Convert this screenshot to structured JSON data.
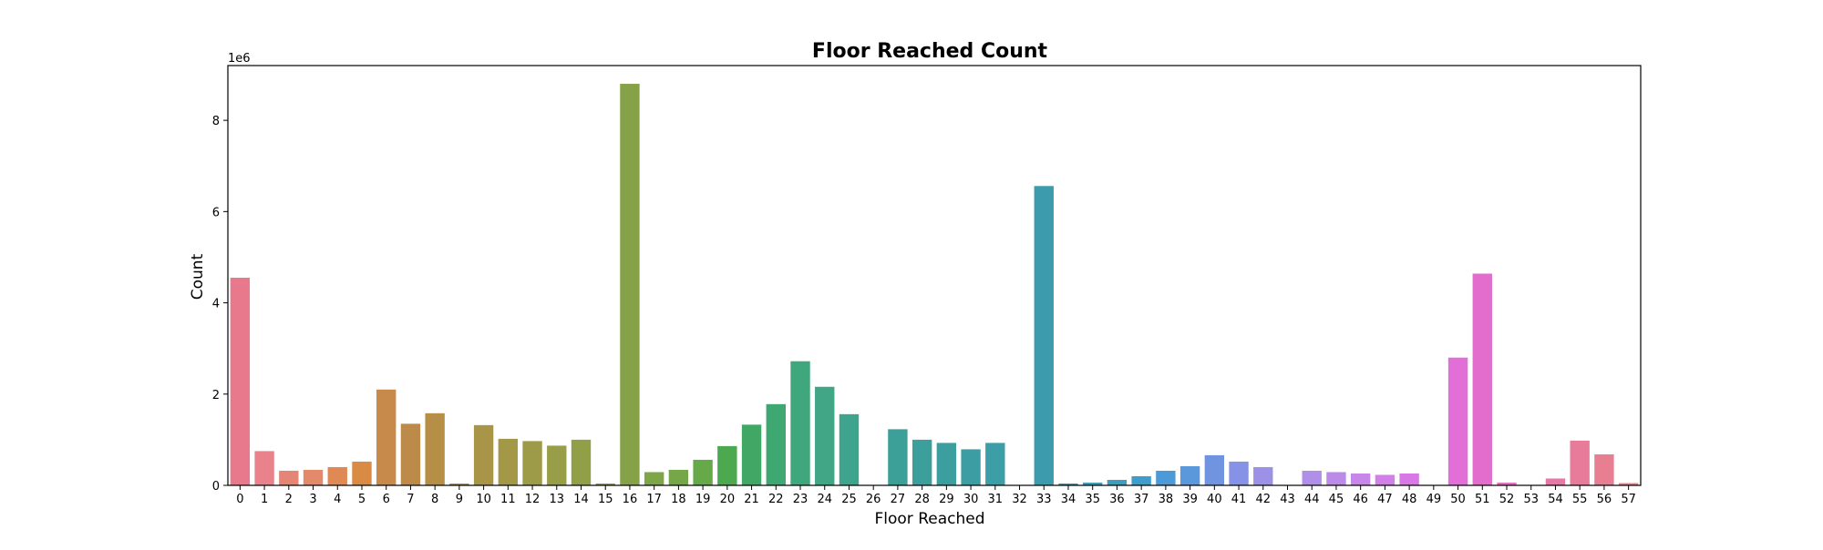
{
  "chart_data": {
    "type": "bar",
    "title": "Floor Reached Count",
    "xlabel": "Floor Reached",
    "ylabel": "Count",
    "y_offset_text": "1e6",
    "ylim": [
      0,
      9200000
    ],
    "yticks": [
      0,
      2,
      4,
      6,
      8
    ],
    "y_scale": 1000000,
    "grid": false,
    "categories": [
      "0",
      "1",
      "2",
      "3",
      "4",
      "5",
      "6",
      "7",
      "8",
      "9",
      "10",
      "11",
      "12",
      "13",
      "14",
      "15",
      "16",
      "17",
      "18",
      "19",
      "20",
      "21",
      "22",
      "23",
      "24",
      "25",
      "26",
      "27",
      "28",
      "29",
      "30",
      "31",
      "32",
      "33",
      "34",
      "35",
      "36",
      "37",
      "38",
      "39",
      "40",
      "41",
      "42",
      "43",
      "44",
      "45",
      "46",
      "47",
      "48",
      "49",
      "50",
      "51",
      "52",
      "53",
      "54",
      "55",
      "56",
      "57"
    ],
    "values": [
      4550000,
      750000,
      320000,
      340000,
      400000,
      520000,
      2100000,
      1350000,
      1580000,
      40000,
      1320000,
      1020000,
      970000,
      870000,
      1000000,
      40000,
      8800000,
      290000,
      340000,
      560000,
      860000,
      1330000,
      1780000,
      2720000,
      2160000,
      1560000,
      0,
      1230000,
      1000000,
      930000,
      790000,
      930000,
      0,
      6560000,
      40000,
      60000,
      120000,
      200000,
      320000,
      420000,
      660000,
      520000,
      400000,
      0,
      320000,
      290000,
      260000,
      230000,
      260000,
      0,
      2800000,
      4640000,
      60000,
      0,
      150000,
      980000,
      680000,
      50000
    ],
    "colors": [
      "#e8788c",
      "#e8838c",
      "#e58575",
      "#e38a6a",
      "#df8a55",
      "#d98a45",
      "#c88a4a",
      "#bc8b4a",
      "#b68e46",
      "#ad9247",
      "#a89547",
      "#a39847",
      "#9d9b47",
      "#979e47",
      "#91a047",
      "#8ba146",
      "#85a248",
      "#7ea648",
      "#75a748",
      "#66a949",
      "#4ca94f",
      "#40a864",
      "#3fa771",
      "#40a77c",
      "#40a685",
      "#3fa48e",
      "#3da296",
      "#3ca098",
      "#3c9f9c",
      "#3c9e9f",
      "#3c9ea3",
      "#3c9ea7",
      "#3c9dac",
      "#3c9cae",
      "#3d9cb3",
      "#3e9cb8",
      "#3f9dbd",
      "#3d9ecb",
      "#4c9ad8",
      "#5a97db",
      "#7094e0",
      "#8592e6",
      "#9b92e8",
      "#a48fe8",
      "#b08fe8",
      "#bc8be8",
      "#c787e8",
      "#d080e7",
      "#d778e5",
      "#de70e0",
      "#e26ed8",
      "#e36dcd",
      "#e570c0",
      "#e673b3",
      "#e777a5",
      "#e77b99",
      "#e87e91",
      "#e8818b"
    ]
  }
}
